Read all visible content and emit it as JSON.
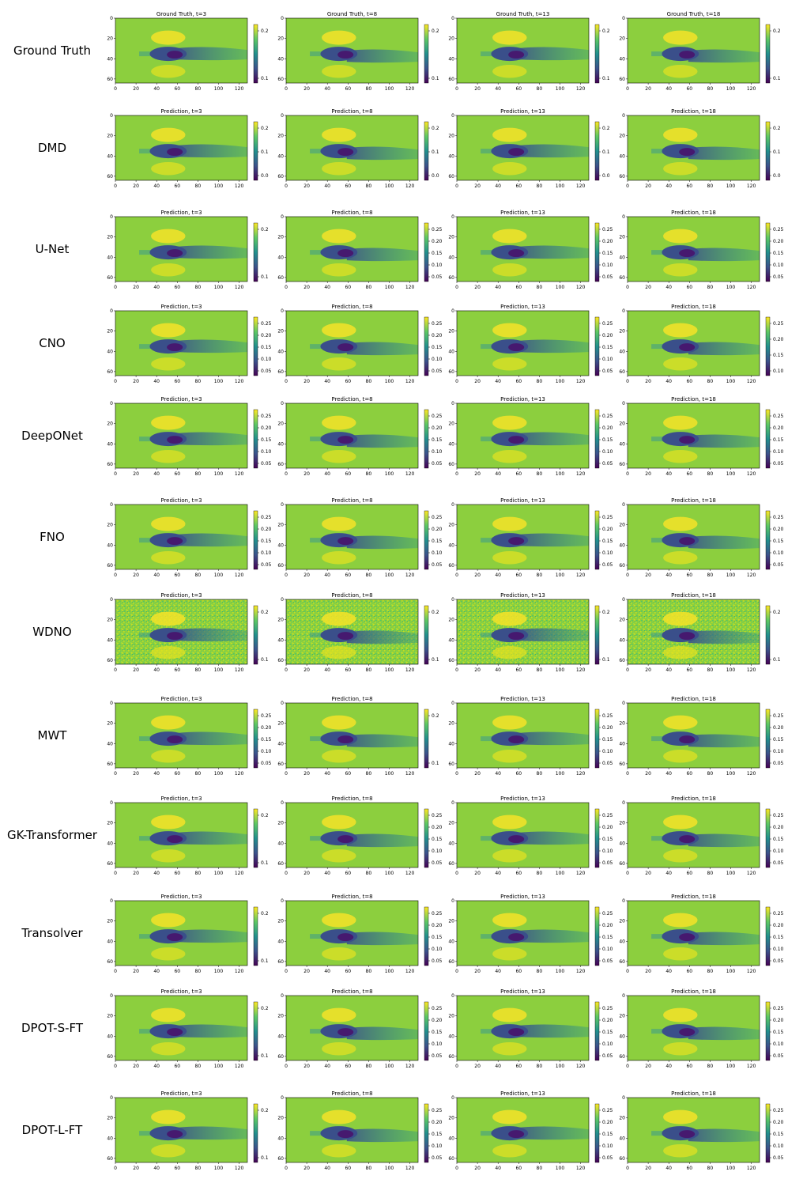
{
  "figure": {
    "x_ticks": [
      "0",
      "20",
      "40",
      "60",
      "80",
      "100",
      "120"
    ],
    "y_ticks": [
      "0",
      "20",
      "40",
      "60"
    ],
    "timesteps": [
      3,
      8,
      13,
      18
    ],
    "gt_title_prefix": "Ground Truth",
    "pred_title_prefix": "Prediction",
    "colormap": "viridis",
    "colormap_stops": [
      "#440154",
      "#3b528b",
      "#21908d",
      "#5dc863",
      "#fde725"
    ],
    "field_background": "#8ccf3e"
  },
  "chart_data": {
    "type": "heatmap",
    "description_rows": "Flow-field snapshots: one row per model, one column per timestep",
    "x": [
      0,
      128
    ],
    "y": [
      0,
      64
    ],
    "rows": [
      {
        "label": "Ground Truth",
        "kind": "gt",
        "noisy": false,
        "colorbars": [
          [
            "0.2",
            "0.1"
          ],
          [
            "0.2",
            "0.1"
          ],
          [
            "0.2",
            "0.1"
          ],
          [
            "0.2",
            "0.1"
          ]
        ]
      },
      {
        "label": "DMD",
        "kind": "pred",
        "noisy": false,
        "colorbars": [
          [
            "0.2",
            "0.1",
            "0.0"
          ],
          [
            "0.2",
            "0.1",
            "0.0"
          ],
          [
            "0.2",
            "0.1",
            "0.0"
          ],
          [
            "0.2",
            "0.1",
            "0.0"
          ]
        ]
      },
      {
        "label": "U-Net",
        "kind": "pred",
        "noisy": false,
        "colorbars": [
          [
            "0.2",
            "0.1"
          ],
          [
            "0.25",
            "0.20",
            "0.15",
            "0.10",
            "0.05"
          ],
          [
            "0.25",
            "0.20",
            "0.15",
            "0.10",
            "0.05"
          ],
          [
            "0.25",
            "0.20",
            "0.15",
            "0.10",
            "0.05"
          ]
        ]
      },
      {
        "label": "CNO",
        "kind": "pred",
        "noisy": false,
        "colorbars": [
          [
            "0.25",
            "0.20",
            "0.15",
            "0.10",
            "0.05"
          ],
          [
            "0.25",
            "0.20",
            "0.15",
            "0.10",
            "0.05"
          ],
          [
            "0.25",
            "0.20",
            "0.15",
            "0.10",
            "0.05"
          ],
          [
            "0.25",
            "0.20",
            "0.15",
            "0.10"
          ]
        ]
      },
      {
        "label": "DeepONet",
        "kind": "pred",
        "noisy": false,
        "colorbars": [
          [
            "0.25",
            "0.20",
            "0.15",
            "0.10",
            "0.05"
          ],
          [
            "0.25",
            "0.20",
            "0.15",
            "0.10",
            "0.05"
          ],
          [
            "0.25",
            "0.20",
            "0.15",
            "0.10",
            "0.05"
          ],
          [
            "0.25",
            "0.20",
            "0.15",
            "0.10",
            "0.05"
          ]
        ]
      },
      {
        "label": "FNO",
        "kind": "pred",
        "noisy": false,
        "colorbars": [
          [
            "0.25",
            "0.20",
            "0.15",
            "0.10",
            "0.05"
          ],
          [
            "0.25",
            "0.20",
            "0.15",
            "0.10",
            "0.05"
          ],
          [
            "0.25",
            "0.20",
            "0.15",
            "0.10",
            "0.05"
          ],
          [
            "0.25",
            "0.20",
            "0.15",
            "0.10",
            "0.05"
          ]
        ]
      },
      {
        "label": "WDNO",
        "kind": "pred",
        "noisy": true,
        "colorbars": [
          [
            "0.2",
            "0.1"
          ],
          [
            "0.2",
            "0.1"
          ],
          [
            "0.2",
            "0.1"
          ],
          [
            "0.2",
            "0.1"
          ]
        ]
      },
      {
        "label": "MWT",
        "kind": "pred",
        "noisy": false,
        "colorbars": [
          [
            "0.25",
            "0.20",
            "0.15",
            "0.10",
            "0.05"
          ],
          [
            "0.2",
            "0.1"
          ],
          [
            "0.25",
            "0.20",
            "0.15",
            "0.10",
            "0.05"
          ],
          [
            "0.25",
            "0.20",
            "0.15",
            "0.10",
            "0.05"
          ]
        ]
      },
      {
        "label": "GK-Transformer",
        "kind": "pred",
        "noisy": false,
        "colorbars": [
          [
            "0.2",
            "0.1"
          ],
          [
            "0.25",
            "0.20",
            "0.15",
            "0.10",
            "0.05"
          ],
          [
            "0.25",
            "0.20",
            "0.15",
            "0.10",
            "0.05"
          ],
          [
            "0.25",
            "0.20",
            "0.15",
            "0.10",
            "0.05"
          ]
        ]
      },
      {
        "label": "Transolver",
        "kind": "pred",
        "noisy": false,
        "colorbars": [
          [
            "0.2",
            "0.1"
          ],
          [
            "0.25",
            "0.20",
            "0.15",
            "0.10",
            "0.05"
          ],
          [
            "0.25",
            "0.20",
            "0.15",
            "0.10",
            "0.05"
          ],
          [
            "0.25",
            "0.20",
            "0.15",
            "0.10",
            "0.05"
          ]
        ]
      },
      {
        "label": "DPOT-S-FT",
        "kind": "pred",
        "noisy": false,
        "colorbars": [
          [
            "0.2",
            "0.1"
          ],
          [
            "0.25",
            "0.20",
            "0.15",
            "0.10",
            "0.05"
          ],
          [
            "0.25",
            "0.20",
            "0.15",
            "0.10",
            "0.05"
          ],
          [
            "0.25",
            "0.20",
            "0.15",
            "0.10",
            "0.05"
          ]
        ]
      },
      {
        "label": "DPOT-L-FT",
        "kind": "pred",
        "noisy": false,
        "colorbars": [
          [
            "0.2",
            "0.1"
          ],
          [
            "0.25",
            "0.20",
            "0.15",
            "0.10",
            "0.05"
          ],
          [
            "0.25",
            "0.20",
            "0.15",
            "0.10",
            "0.05"
          ],
          [
            "0.25",
            "0.20",
            "0.15",
            "0.10",
            "0.05"
          ]
        ]
      }
    ]
  }
}
